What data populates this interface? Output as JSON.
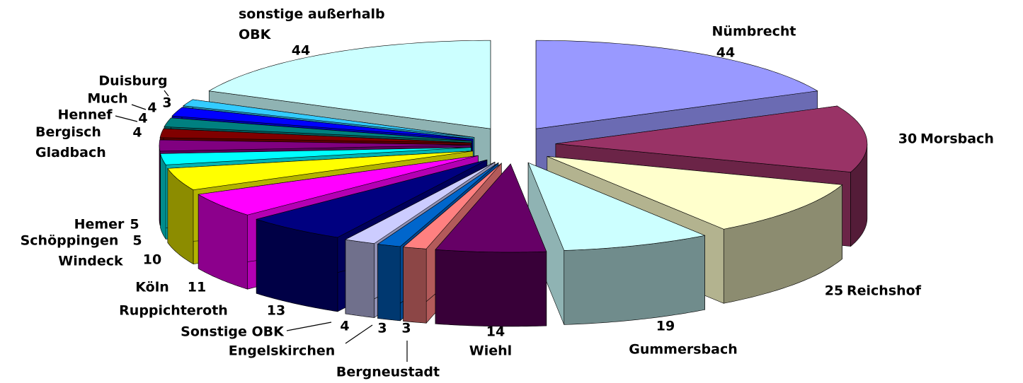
{
  "chart_data": {
    "type": "pie",
    "categories": [
      "Nümbrecht",
      "Morsbach",
      "Reichshof",
      "Gummersbach",
      "Wiehl",
      "Bergneustadt",
      "Engelskirchen",
      "Sonstige OBK",
      "Ruppichteroth",
      "Köln",
      "Windeck",
      "Schöppingen",
      "Hemer",
      "Bergisch Gladbach",
      "Hennef",
      "Much",
      "Duisburg",
      "sonstige außerhalb OBK"
    ],
    "values": [
      44,
      30,
      25,
      19,
      14,
      3,
      3,
      4,
      13,
      11,
      10,
      5,
      5,
      4,
      4,
      4,
      3,
      44
    ],
    "colors": [
      "#9999ff",
      "#993366",
      "#ffffcc",
      "#ccffff",
      "#660066",
      "#ff8080",
      "#0066cc",
      "#ccccff",
      "#000080",
      "#ff00ff",
      "#ffff00",
      "#00ffff",
      "#800080",
      "#800000",
      "#008080",
      "#0000ff",
      "#33ccff",
      "#ccffff"
    ]
  }
}
